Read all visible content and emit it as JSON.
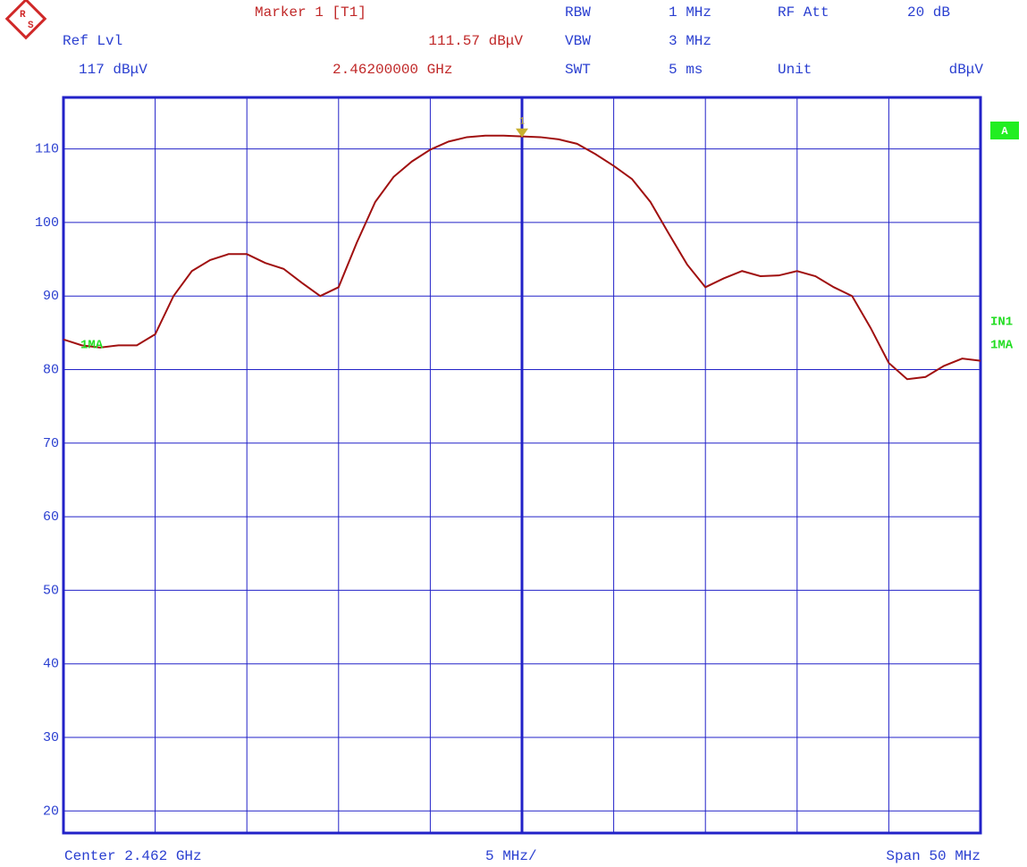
{
  "chart_data": {
    "type": "line",
    "header": {
      "marker_title": "Marker 1 [T1]",
      "ref_lvl_label": "Ref Lvl",
      "ref_lvl_value": "117 dBμV",
      "marker_level": "111.57 dBμV",
      "marker_freq": "2.46200000 GHz",
      "rbw_label": "RBW",
      "rbw_value": "1 MHz",
      "vbw_label": "VBW",
      "vbw_value": "3 MHz",
      "swt_label": "SWT",
      "swt_value": "5 ms",
      "att_label": "RF Att",
      "att_value": "20 dB",
      "unit_label": "Unit",
      "unit_value": "dBμV"
    },
    "footer": {
      "center": "Center 2.462 GHz",
      "div": "5 MHz/",
      "span": "Span 50 MHz"
    },
    "side": {
      "trace": "A",
      "input": "IN1",
      "mode": "1MA"
    },
    "trace_label": "1MA",
    "x": [
      2.437,
      2.438,
      2.439,
      2.44,
      2.441,
      2.442,
      2.443,
      2.444,
      2.445,
      2.446,
      2.447,
      2.448,
      2.449,
      2.45,
      2.451,
      2.452,
      2.453,
      2.454,
      2.455,
      2.456,
      2.457,
      2.458,
      2.459,
      2.46,
      2.461,
      2.462,
      2.463,
      2.464,
      2.465,
      2.466,
      2.467,
      2.468,
      2.469,
      2.47,
      2.471,
      2.472,
      2.473,
      2.474,
      2.475,
      2.476,
      2.477,
      2.478,
      2.479,
      2.48,
      2.481,
      2.482,
      2.483,
      2.484,
      2.485,
      2.486,
      2.487
    ],
    "series": [
      {
        "name": "1MA",
        "color": "#a01010",
        "values": [
          84.1,
          83.3,
          83.0,
          83.3,
          83.3,
          84.8,
          90,
          93.4,
          94.9,
          95.7,
          95.7,
          94.5,
          93.7,
          91.8,
          90,
          91.2,
          97.3,
          102.8,
          106.2,
          108.3,
          109.9,
          111,
          111.6,
          111.8,
          111.8,
          111.7,
          111.6,
          111.3,
          110.7,
          109.3,
          107.7,
          105.9,
          102.8,
          98.5,
          94.3,
          91.2,
          92.4,
          93.4,
          92.7,
          92.8,
          93.4,
          92.7,
          91.2,
          90,
          85.7,
          80.9,
          78.7,
          79,
          80.5,
          81.5,
          81.2
        ]
      }
    ],
    "marker": {
      "x": 2.462,
      "value": 111.57,
      "label": "1",
      "color": "#c8b030"
    },
    "xlim": [
      2.437,
      2.487
    ],
    "xticks": [
      2.437,
      2.442,
      2.447,
      2.452,
      2.457,
      2.462,
      2.467,
      2.472,
      2.477,
      2.482,
      2.487
    ],
    "ylim": [
      17,
      117
    ],
    "yticks": [
      20,
      30,
      40,
      50,
      60,
      70,
      80,
      90,
      100,
      110
    ],
    "grid": true,
    "grid_color": "#2222c8"
  }
}
